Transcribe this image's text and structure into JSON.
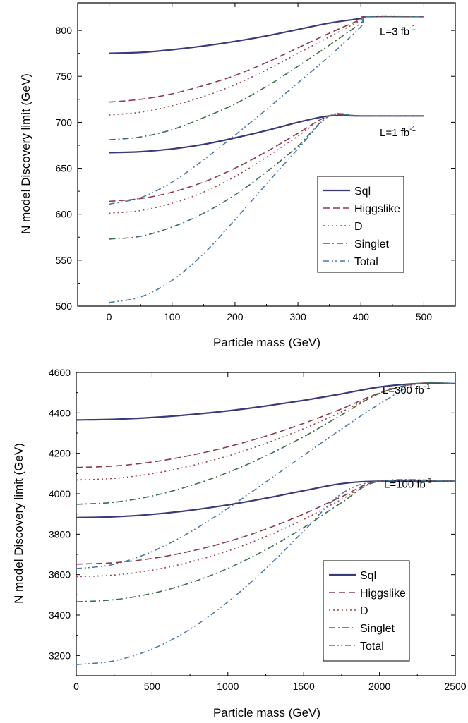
{
  "chart_data": [
    {
      "type": "line",
      "xlabel": "Particle mass (GeV)",
      "ylabel": "N model Discovery limit (GeV)",
      "xlim": [
        -50,
        550
      ],
      "ylim": [
        500,
        830
      ],
      "xticks": [
        0,
        100,
        200,
        300,
        400,
        500
      ],
      "yticks": [
        500,
        550,
        600,
        650,
        700,
        750,
        800
      ],
      "legend_position": "bottom-right",
      "annotations": [
        {
          "label": "L=3 fb",
          "sup": "-1",
          "x": 430,
          "y": 795
        },
        {
          "label": "L=1 fb",
          "sup": "-1",
          "x": 430,
          "y": 685
        }
      ],
      "styles": {
        "Sql": {
          "color": "#3a3a7a",
          "dash": "",
          "width": 2.2
        },
        "Higgslike": {
          "color": "#8b3a4e",
          "dash": "9 5",
          "width": 1.6
        },
        "D": {
          "color": "#9a4848",
          "dash": "2 4",
          "width": 1.6
        },
        "Singlet": {
          "color": "#3d6e4a",
          "dash": "9 4 2 4",
          "width": 1.6
        },
        "Total": {
          "color": "#4a7aa5",
          "dash": "8 4 2 3 2 4",
          "width": 1.6
        }
      },
      "series": [
        {
          "name": "Sql",
          "group": "L=3",
          "x": [
            0,
            50,
            100,
            150,
            200,
            250,
            300,
            350,
            400,
            410,
            500
          ],
          "y": [
            775,
            776,
            779,
            783,
            788,
            794,
            801,
            808,
            813,
            815,
            815
          ]
        },
        {
          "name": "Higgslike",
          "group": "L=3",
          "x": [
            0,
            50,
            100,
            150,
            200,
            250,
            300,
            350,
            400,
            410,
            500
          ],
          "y": [
            722,
            725,
            731,
            740,
            751,
            765,
            781,
            797,
            812,
            815,
            815
          ]
        },
        {
          "name": "D",
          "group": "L=3",
          "x": [
            0,
            50,
            100,
            150,
            200,
            250,
            300,
            350,
            400,
            410,
            500
          ],
          "y": [
            708,
            711,
            718,
            728,
            741,
            757,
            775,
            793,
            811,
            815,
            815
          ]
        },
        {
          "name": "Singlet",
          "group": "L=3",
          "x": [
            0,
            50,
            100,
            150,
            200,
            250,
            300,
            350,
            400,
            410,
            500
          ],
          "y": [
            681,
            684,
            692,
            705,
            720,
            739,
            761,
            784,
            808,
            815,
            815
          ]
        },
        {
          "name": "Total",
          "group": "L=3",
          "x": [
            0,
            50,
            100,
            150,
            200,
            250,
            300,
            350,
            400,
            410,
            500
          ],
          "y": [
            611,
            618,
            635,
            659,
            686,
            714,
            743,
            772,
            804,
            815,
            815
          ]
        },
        {
          "name": "Sql",
          "group": "L=1",
          "x": [
            0,
            50,
            100,
            150,
            200,
            250,
            300,
            350,
            400,
            500
          ],
          "y": [
            667,
            668,
            671,
            676,
            683,
            691,
            700,
            707,
            707,
            707
          ]
        },
        {
          "name": "Higgslike",
          "group": "L=1",
          "x": [
            0,
            50,
            100,
            150,
            200,
            250,
            300,
            350,
            400,
            500
          ],
          "y": [
            614,
            617,
            624,
            635,
            650,
            668,
            688,
            707,
            707,
            707
          ]
        },
        {
          "name": "D",
          "group": "L=1",
          "x": [
            0,
            50,
            100,
            150,
            200,
            250,
            300,
            350,
            400,
            500
          ],
          "y": [
            601,
            604,
            612,
            624,
            641,
            662,
            685,
            707,
            707,
            707
          ]
        },
        {
          "name": "Singlet",
          "group": "L=1",
          "x": [
            0,
            50,
            100,
            150,
            200,
            250,
            300,
            350,
            400,
            500
          ],
          "y": [
            573,
            576,
            586,
            601,
            621,
            646,
            674,
            707,
            707,
            707
          ]
        },
        {
          "name": "Total",
          "group": "L=1",
          "x": [
            0,
            50,
            100,
            150,
            200,
            250,
            300,
            350,
            400,
            500
          ],
          "y": [
            504,
            510,
            528,
            557,
            594,
            633,
            671,
            707,
            707,
            707
          ]
        }
      ]
    },
    {
      "type": "line",
      "xlabel": "Particle mass (GeV)",
      "ylabel": "N model Discovery limit (GeV)",
      "xlim": [
        0,
        2500
      ],
      "ylim": [
        3100,
        4600
      ],
      "xticks": [
        0,
        500,
        1000,
        1500,
        2000,
        2500
      ],
      "yticks": [
        3200,
        3400,
        3600,
        3800,
        4000,
        4200,
        4400,
        4600
      ],
      "legend_position": "bottom-right",
      "annotations": [
        {
          "label": "L=300 fb",
          "sup": "-1",
          "x": 2020,
          "y": 4495
        },
        {
          "label": "L=100 fb",
          "sup": "-1",
          "x": 2030,
          "y": 4030
        }
      ],
      "styles": {
        "Sql": {
          "color": "#3a3a7a",
          "dash": "",
          "width": 2.2
        },
        "Higgslike": {
          "color": "#8b3a4e",
          "dash": "9 5",
          "width": 1.6
        },
        "D": {
          "color": "#9a4848",
          "dash": "2 4",
          "width": 1.6
        },
        "Singlet": {
          "color": "#3d6e4a",
          "dash": "9 4 2 4",
          "width": 1.6
        },
        "Total": {
          "color": "#4a7aa5",
          "dash": "8 4 2 3 2 4",
          "width": 1.6
        }
      },
      "series": [
        {
          "name": "Sql",
          "group": "L=300",
          "x": [
            0,
            250,
            500,
            750,
            1000,
            1250,
            1500,
            1750,
            2000,
            2250,
            2500
          ],
          "y": [
            4365,
            4368,
            4377,
            4391,
            4410,
            4434,
            4462,
            4494,
            4528,
            4545,
            4545
          ]
        },
        {
          "name": "Higgslike",
          "group": "L=300",
          "x": [
            0,
            250,
            500,
            750,
            1000,
            1250,
            1500,
            1750,
            2000,
            2250,
            2500
          ],
          "y": [
            4130,
            4137,
            4157,
            4189,
            4232,
            4285,
            4348,
            4420,
            4498,
            4545,
            4545
          ]
        },
        {
          "name": "D",
          "group": "L=300",
          "x": [
            0,
            250,
            500,
            750,
            1000,
            1250,
            1500,
            1750,
            2000,
            2250,
            2500
          ],
          "y": [
            4068,
            4076,
            4099,
            4137,
            4187,
            4249,
            4322,
            4405,
            4496,
            4545,
            4545
          ]
        },
        {
          "name": "Singlet",
          "group": "L=300",
          "x": [
            0,
            250,
            500,
            750,
            1000,
            1250,
            1500,
            1750,
            2000,
            2250,
            2500
          ],
          "y": [
            3948,
            3958,
            3989,
            4039,
            4105,
            4187,
            4282,
            4390,
            4496,
            4545,
            4545
          ]
        },
        {
          "name": "Total",
          "group": "L=300",
          "x": [
            0,
            250,
            500,
            750,
            1000,
            1250,
            1500,
            1750,
            2000,
            2250,
            2500
          ],
          "y": [
            3630,
            3651,
            3714,
            3810,
            3928,
            4058,
            4190,
            4320,
            4444,
            4545,
            4545
          ]
        },
        {
          "name": "Sql",
          "group": "L=100",
          "x": [
            0,
            250,
            500,
            750,
            1000,
            1250,
            1500,
            1750,
            2000,
            2500
          ],
          "y": [
            3882,
            3886,
            3898,
            3918,
            3945,
            3978,
            4015,
            4050,
            4062,
            4062
          ]
        },
        {
          "name": "Higgslike",
          "group": "L=100",
          "x": [
            0,
            250,
            500,
            750,
            1000,
            1250,
            1500,
            1750,
            2000,
            2500
          ],
          "y": [
            3652,
            3659,
            3680,
            3715,
            3763,
            3825,
            3900,
            3985,
            4062,
            4062
          ]
        },
        {
          "name": "D",
          "group": "L=100",
          "x": [
            0,
            250,
            500,
            750,
            1000,
            1250,
            1500,
            1750,
            2000,
            2500
          ],
          "y": [
            3590,
            3598,
            3622,
            3662,
            3717,
            3788,
            3873,
            3972,
            4062,
            4062
          ]
        },
        {
          "name": "Singlet",
          "group": "L=100",
          "x": [
            0,
            250,
            500,
            750,
            1000,
            1250,
            1500,
            1750,
            2000,
            2500
          ],
          "y": [
            3466,
            3476,
            3507,
            3559,
            3631,
            3723,
            3833,
            3956,
            4062,
            4062
          ]
        },
        {
          "name": "Total",
          "group": "L=100",
          "x": [
            0,
            250,
            500,
            750,
            1000,
            1250,
            1500,
            1750,
            2000,
            2500
          ],
          "y": [
            3155,
            3174,
            3232,
            3330,
            3465,
            3630,
            3815,
            4000,
            4062,
            4062
          ]
        }
      ]
    }
  ],
  "legend_labels": [
    "Sql",
    "Higgslike",
    "D",
    "Singlet",
    "Total"
  ]
}
